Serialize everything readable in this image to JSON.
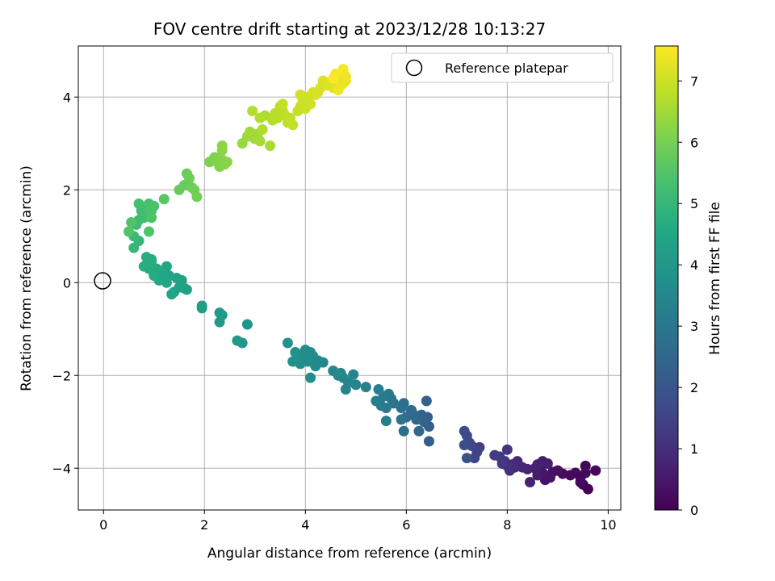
{
  "chart_data": {
    "type": "scatter",
    "title": "FOV centre drift starting at 2023/12/28 10:13:27",
    "xlabel": "Angular distance from reference (arcmin)",
    "ylabel": "Rotation from reference (arcmin)",
    "xlim": [
      -0.5,
      10.25
    ],
    "ylim": [
      -4.9,
      5.1
    ],
    "xticks": [
      0,
      2,
      4,
      6,
      8,
      10
    ],
    "yticks": [
      -4,
      -2,
      0,
      2,
      4
    ],
    "grid": true,
    "legend": {
      "placement": "top-right",
      "entries": [
        "Reference platepar"
      ]
    },
    "reference_point": {
      "x": 0,
      "y": 0,
      "label": "Reference platepar"
    },
    "colorbar": {
      "label": "Hours from first FF file",
      "range": [
        0,
        7.57
      ],
      "ticks": [
        0,
        1,
        2,
        3,
        4,
        5,
        6,
        7
      ],
      "colormap": "viridis"
    },
    "points": [
      [
        9.6,
        -4.45,
        0.02
      ],
      [
        9.5,
        -4.35,
        0.05
      ],
      [
        9.45,
        -4.2,
        0.08
      ],
      [
        9.55,
        -3.95,
        0.1
      ],
      [
        9.75,
        -4.05,
        0.12
      ],
      [
        9.35,
        -4.1,
        0.15
      ],
      [
        9.25,
        -4.15,
        0.18
      ],
      [
        9.55,
        -4.1,
        0.2
      ],
      [
        9.45,
        -4.3,
        0.22
      ],
      [
        9.1,
        -4.12,
        0.25
      ],
      [
        9.0,
        -4.05,
        0.3
      ],
      [
        8.9,
        -4.08,
        0.35
      ],
      [
        8.85,
        -4.2,
        0.38
      ],
      [
        8.75,
        -4.25,
        0.42
      ],
      [
        8.7,
        -4.1,
        0.45
      ],
      [
        8.65,
        -4.0,
        0.5
      ],
      [
        8.6,
        -4.15,
        0.55
      ],
      [
        8.55,
        -4.0,
        0.6
      ],
      [
        8.7,
        -3.85,
        0.62
      ],
      [
        8.8,
        -3.9,
        0.65
      ],
      [
        8.6,
        -3.92,
        0.7
      ],
      [
        8.45,
        -4.3,
        0.72
      ],
      [
        8.4,
        -4.02,
        0.75
      ],
      [
        8.3,
        -3.98,
        0.8
      ],
      [
        8.2,
        -3.85,
        0.85
      ],
      [
        8.15,
        -3.98,
        0.9
      ],
      [
        8.1,
        -3.92,
        0.95
      ],
      [
        8.05,
        -4.05,
        1.0
      ],
      [
        8.0,
        -3.95,
        1.05
      ],
      [
        7.95,
        -3.85,
        1.1
      ],
      [
        8.0,
        -3.6,
        1.15
      ],
      [
        7.9,
        -3.9,
        1.2
      ],
      [
        7.85,
        -3.75,
        1.25
      ],
      [
        7.75,
        -3.72,
        1.3
      ],
      [
        7.45,
        -3.55,
        1.45
      ],
      [
        7.4,
        -3.65,
        1.5
      ],
      [
        7.35,
        -3.78,
        1.55
      ],
      [
        7.3,
        -3.52,
        1.6
      ],
      [
        7.25,
        -3.45,
        1.65
      ],
      [
        7.2,
        -3.3,
        1.7
      ],
      [
        7.15,
        -3.2,
        1.75
      ],
      [
        7.15,
        -3.5,
        1.8
      ],
      [
        7.2,
        -3.78,
        1.85
      ],
      [
        6.45,
        -3.42,
        2.2
      ],
      [
        6.45,
        -3.1,
        2.25
      ],
      [
        6.42,
        -2.9,
        2.3
      ],
      [
        6.4,
        -2.55,
        2.35
      ],
      [
        6.35,
        -3.0,
        2.4
      ],
      [
        6.3,
        -2.85,
        2.45
      ],
      [
        6.25,
        -3.2,
        2.5
      ],
      [
        6.2,
        -2.95,
        2.55
      ],
      [
        6.15,
        -2.85,
        2.6
      ],
      [
        6.1,
        -2.75,
        2.62
      ],
      [
        6.0,
        -2.9,
        2.65
      ],
      [
        5.95,
        -2.6,
        2.7
      ],
      [
        5.9,
        -2.7,
        2.75
      ],
      [
        5.95,
        -3.2,
        2.8
      ],
      [
        5.9,
        -2.95,
        2.85
      ],
      [
        5.75,
        -2.6,
        2.9
      ],
      [
        5.7,
        -2.5,
        2.95
      ],
      [
        5.65,
        -2.4,
        3.0
      ],
      [
        5.6,
        -2.7,
        3.05
      ],
      [
        5.55,
        -2.45,
        3.1
      ],
      [
        5.6,
        -2.98,
        3.12
      ],
      [
        5.5,
        -2.65,
        3.15
      ],
      [
        5.45,
        -2.3,
        3.2
      ],
      [
        5.4,
        -2.55,
        3.25
      ],
      [
        5.2,
        -2.25,
        3.3
      ],
      [
        5.0,
        -2.2,
        3.35
      ],
      [
        4.95,
        -1.98,
        3.38
      ],
      [
        4.85,
        -2.15,
        3.4
      ],
      [
        4.8,
        -2.3,
        3.42
      ],
      [
        4.75,
        -2.05,
        3.45
      ],
      [
        4.7,
        -1.95,
        3.48
      ],
      [
        4.65,
        -2.0,
        3.5
      ],
      [
        4.55,
        -1.9,
        3.52
      ],
      [
        4.35,
        -1.72,
        3.55
      ],
      [
        4.25,
        -1.68,
        3.58
      ],
      [
        4.15,
        -1.58,
        3.6
      ],
      [
        4.1,
        -1.5,
        3.62
      ],
      [
        4.05,
        -1.7,
        3.65
      ],
      [
        4.0,
        -1.45,
        3.68
      ],
      [
        3.95,
        -1.6,
        3.7
      ],
      [
        3.9,
        -1.75,
        3.72
      ],
      [
        3.85,
        -1.55,
        3.75
      ],
      [
        3.8,
        -1.5,
        3.78
      ],
      [
        3.75,
        -1.7,
        3.8
      ],
      [
        3.65,
        -1.3,
        3.82
      ],
      [
        4.1,
        -2.05,
        3.65
      ],
      [
        4.2,
        -1.8,
        3.6
      ],
      [
        2.85,
        -0.9,
        3.95
      ],
      [
        2.75,
        -1.3,
        4.0
      ],
      [
        2.65,
        -1.25,
        4.02
      ],
      [
        2.35,
        -0.7,
        4.05
      ],
      [
        2.3,
        -0.65,
        4.08
      ],
      [
        2.3,
        -0.85,
        4.1
      ],
      [
        1.95,
        -0.5,
        4.15
      ],
      [
        1.95,
        -0.55,
        4.18
      ],
      [
        1.65,
        -0.15,
        4.25
      ],
      [
        1.6,
        -0.12,
        4.28
      ],
      [
        1.55,
        0.05,
        4.3
      ],
      [
        1.5,
        -0.1,
        4.32
      ],
      [
        1.45,
        0.1,
        4.35
      ],
      [
        1.4,
        -0.2,
        4.38
      ],
      [
        1.35,
        -0.25,
        4.4
      ],
      [
        1.3,
        0.15,
        4.42
      ],
      [
        1.25,
        0.35,
        4.45
      ],
      [
        1.25,
        0.0,
        4.48
      ],
      [
        1.2,
        0.1,
        4.5
      ],
      [
        1.15,
        0.25,
        4.52
      ],
      [
        1.1,
        0.05,
        4.55
      ],
      [
        1.05,
        0.3,
        4.58
      ],
      [
        1.0,
        0.15,
        4.6
      ],
      [
        0.95,
        0.5,
        4.62
      ],
      [
        0.9,
        0.3,
        4.65
      ],
      [
        0.85,
        0.55,
        4.68
      ],
      [
        0.8,
        0.35,
        4.7
      ],
      [
        0.95,
        0.45,
        4.72
      ],
      [
        0.7,
        0.9,
        5.0
      ],
      [
        0.6,
        0.75,
        5.05
      ],
      [
        0.6,
        1.0,
        5.1
      ],
      [
        0.65,
        1.25,
        5.15
      ],
      [
        0.7,
        1.35,
        5.2
      ],
      [
        0.8,
        1.4,
        5.22
      ],
      [
        0.85,
        1.6,
        5.25
      ],
      [
        0.75,
        1.55,
        5.28
      ],
      [
        0.7,
        1.7,
        5.3
      ],
      [
        0.9,
        1.7,
        5.35
      ],
      [
        0.95,
        1.55,
        5.38
      ],
      [
        1.0,
        1.65,
        5.4
      ],
      [
        0.95,
        1.4,
        5.42
      ],
      [
        0.9,
        1.1,
        5.45
      ],
      [
        0.5,
        1.1,
        5.5
      ],
      [
        0.55,
        1.3,
        5.48
      ],
      [
        1.2,
        1.8,
        5.6
      ],
      [
        1.5,
        2.0,
        5.75
      ],
      [
        1.6,
        2.1,
        5.8
      ],
      [
        1.65,
        2.35,
        5.85
      ],
      [
        1.7,
        2.25,
        5.88
      ],
      [
        1.75,
        2.05,
        5.9
      ],
      [
        1.8,
        2.0,
        5.92
      ],
      [
        1.85,
        1.85,
        5.95
      ],
      [
        2.1,
        2.6,
        6.05
      ],
      [
        2.2,
        2.7,
        6.1
      ],
      [
        2.25,
        2.6,
        6.12
      ],
      [
        2.3,
        2.5,
        6.15
      ],
      [
        2.35,
        2.65,
        6.18
      ],
      [
        2.4,
        2.55,
        6.2
      ],
      [
        2.45,
        2.6,
        6.22
      ],
      [
        2.35,
        2.95,
        6.25
      ],
      [
        2.35,
        2.85,
        6.28
      ],
      [
        2.75,
        3.0,
        6.4
      ],
      [
        2.85,
        3.15,
        6.45
      ],
      [
        2.9,
        3.25,
        6.48
      ],
      [
        3.0,
        3.1,
        6.5
      ],
      [
        3.05,
        3.2,
        6.52
      ],
      [
        3.1,
        3.05,
        6.55
      ],
      [
        3.3,
        2.95,
        6.6
      ],
      [
        3.2,
        3.6,
        6.62
      ],
      [
        3.15,
        3.3,
        6.65
      ],
      [
        3.1,
        3.55,
        6.68
      ],
      [
        2.95,
        3.7,
        6.7
      ],
      [
        3.35,
        3.5,
        6.72
      ],
      [
        3.4,
        3.65,
        6.74
      ],
      [
        3.45,
        3.55,
        6.76
      ],
      [
        3.5,
        3.8,
        6.78
      ],
      [
        3.55,
        3.7,
        6.8
      ],
      [
        3.6,
        3.6,
        6.82
      ],
      [
        3.65,
        3.45,
        6.84
      ],
      [
        3.7,
        3.55,
        6.86
      ],
      [
        3.75,
        3.4,
        6.88
      ],
      [
        3.55,
        3.85,
        6.9
      ],
      [
        3.85,
        3.7,
        6.92
      ],
      [
        3.9,
        3.8,
        6.94
      ],
      [
        3.95,
        3.9,
        6.96
      ],
      [
        4.0,
        3.75,
        6.98
      ],
      [
        4.05,
        4.0,
        7.0
      ],
      [
        4.1,
        3.85,
        7.02
      ],
      [
        3.9,
        4.05,
        7.04
      ],
      [
        4.15,
        4.1,
        7.06
      ],
      [
        4.2,
        4.05,
        7.08
      ],
      [
        4.25,
        4.1,
        7.1
      ],
      [
        4.3,
        4.2,
        7.12
      ],
      [
        4.35,
        4.35,
        7.14
      ],
      [
        4.45,
        4.25,
        7.16
      ],
      [
        4.5,
        4.3,
        7.18
      ],
      [
        4.55,
        4.2,
        7.2
      ],
      [
        4.6,
        4.35,
        7.22
      ],
      [
        4.65,
        4.2,
        7.24
      ],
      [
        4.7,
        4.4,
        7.26
      ],
      [
        4.75,
        4.3,
        7.28
      ],
      [
        4.8,
        4.35,
        7.3
      ],
      [
        4.75,
        4.5,
        7.32
      ],
      [
        4.7,
        4.25,
        7.35
      ],
      [
        4.65,
        4.15,
        7.38
      ],
      [
        4.8,
        4.45,
        7.4
      ],
      [
        4.75,
        4.6,
        7.45
      ],
      [
        4.6,
        4.5,
        7.5
      ],
      [
        4.55,
        4.4,
        7.55
      ]
    ]
  }
}
